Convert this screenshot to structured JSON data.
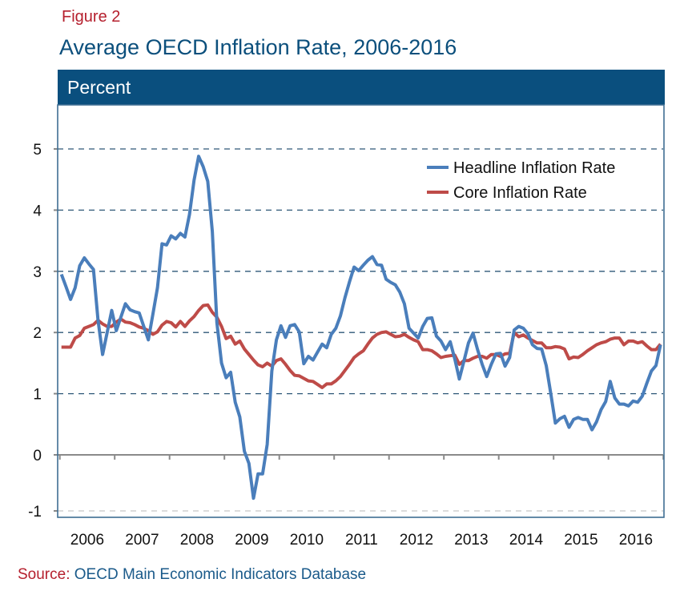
{
  "figure_label": "Figure 2",
  "source": {
    "label": "Source:",
    "text": "OECD Main Economic Indicators Database"
  },
  "colors": {
    "headline": "#4a7ebb",
    "core": "#be4b48",
    "band": "#0a4f7e",
    "title": "#0b4f7c",
    "accent_red": "#b5202e"
  },
  "chart_data": {
    "type": "line",
    "title": "Average OECD Inflation Rate, 2006-2016",
    "ylabel": "Percent",
    "xlabel": "",
    "x_start": "2006-01",
    "x_frequency": "monthly",
    "x_tick_labels": [
      "2006",
      "2007",
      "2008",
      "2009",
      "2010",
      "2011",
      "2012",
      "2013",
      "2014",
      "2015",
      "2016"
    ],
    "y_tick_labels": [
      "5",
      "4",
      "3",
      "2",
      "1",
      "0",
      "-1"
    ],
    "y_ticks": [
      5,
      4,
      3,
      2,
      1,
      0,
      -1
    ],
    "ylim": [
      -1,
      5.5
    ],
    "grid": "horizontal dashed",
    "legend_position": "top-right",
    "series": [
      {
        "name": "Headline Inflation Rate",
        "color": "#4a7ebb",
        "values": [
          2.95,
          2.75,
          2.54,
          2.73,
          3.09,
          3.22,
          3.12,
          3.03,
          2.2,
          1.64,
          2.0,
          2.36,
          2.03,
          2.25,
          2.47,
          2.37,
          2.34,
          2.32,
          2.1,
          1.88,
          2.3,
          2.73,
          3.45,
          3.43,
          3.58,
          3.53,
          3.62,
          3.56,
          3.93,
          4.49,
          4.88,
          4.71,
          4.47,
          3.65,
          2.16,
          1.5,
          1.26,
          1.35,
          0.86,
          0.62,
          0.06,
          -0.14,
          -0.71,
          -0.31,
          -0.31,
          0.17,
          1.37,
          1.88,
          2.11,
          1.92,
          2.11,
          2.13,
          2.01,
          1.49,
          1.61,
          1.55,
          1.68,
          1.81,
          1.75,
          1.97,
          2.07,
          2.27,
          2.57,
          2.83,
          3.07,
          3.01,
          3.1,
          3.18,
          3.24,
          3.11,
          3.1,
          2.87,
          2.82,
          2.78,
          2.66,
          2.47,
          2.07,
          1.99,
          1.91,
          2.1,
          2.23,
          2.24,
          1.94,
          1.86,
          1.72,
          1.85,
          1.57,
          1.24,
          1.53,
          1.83,
          1.99,
          1.72,
          1.48,
          1.28,
          1.48,
          1.65,
          1.66,
          1.45,
          1.59,
          2.04,
          2.1,
          2.07,
          1.98,
          1.8,
          1.74,
          1.73,
          1.46,
          1.0,
          0.52,
          0.59,
          0.63,
          0.45,
          0.58,
          0.61,
          0.58,
          0.58,
          0.41,
          0.54,
          0.74,
          0.87,
          1.2,
          0.93,
          0.83,
          0.83,
          0.8,
          0.88,
          0.86,
          0.96,
          1.17,
          1.37,
          1.46,
          1.8
        ]
      },
      {
        "name": "Core Inflation Rate",
        "color": "#be4b48",
        "values": [
          1.76,
          1.76,
          1.76,
          1.91,
          1.95,
          2.07,
          2.1,
          2.13,
          2.2,
          2.14,
          2.1,
          2.1,
          2.17,
          2.22,
          2.17,
          2.16,
          2.13,
          2.09,
          2.07,
          2.03,
          1.97,
          2.01,
          2.12,
          2.18,
          2.16,
          2.09,
          2.18,
          2.1,
          2.19,
          2.26,
          2.36,
          2.44,
          2.45,
          2.33,
          2.25,
          2.1,
          1.9,
          1.94,
          1.81,
          1.86,
          1.73,
          1.64,
          1.55,
          1.47,
          1.44,
          1.5,
          1.45,
          1.54,
          1.57,
          1.48,
          1.38,
          1.3,
          1.29,
          1.25,
          1.21,
          1.2,
          1.15,
          1.1,
          1.16,
          1.16,
          1.21,
          1.28,
          1.38,
          1.48,
          1.59,
          1.65,
          1.7,
          1.81,
          1.91,
          1.97,
          2.0,
          2.01,
          1.97,
          1.93,
          1.94,
          1.97,
          1.92,
          1.88,
          1.85,
          1.72,
          1.72,
          1.7,
          1.65,
          1.59,
          1.61,
          1.62,
          1.63,
          1.48,
          1.54,
          1.54,
          1.58,
          1.61,
          1.61,
          1.58,
          1.64,
          1.64,
          1.61,
          1.65,
          1.66,
          2.0,
          1.93,
          1.96,
          1.91,
          1.87,
          1.83,
          1.83,
          1.75,
          1.75,
          1.77,
          1.76,
          1.73,
          1.57,
          1.6,
          1.59,
          1.64,
          1.7,
          1.75,
          1.8,
          1.83,
          1.85,
          1.89,
          1.91,
          1.91,
          1.8,
          1.86,
          1.86,
          1.83,
          1.85,
          1.78,
          1.72,
          1.72,
          1.81
        ]
      }
    ]
  }
}
